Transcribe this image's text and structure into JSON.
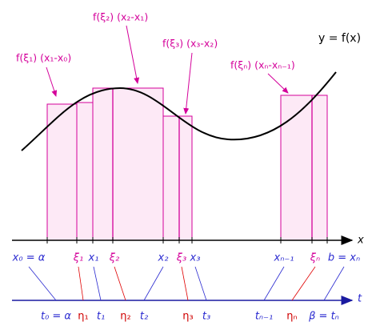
{
  "curve_label": "y = f(x)",
  "annotations": [
    "f(ξ₁) (x₁-x₀)",
    "f(ξ₂) (x₂-x₁)",
    "f(ξ₃) (x₃-x₂)",
    "f(ξₙ) (xₙ-xₙ₋₁)"
  ],
  "x_axis": {
    "label": "x",
    "points": [
      "x₀ = α",
      "ξ₁",
      "x₁",
      "ξ₂",
      "x₂",
      "ξ₃",
      "x₃",
      "xₙ₋₁",
      "ξₙ",
      "b = xₙ"
    ]
  },
  "t_axis": {
    "label": "t",
    "points": [
      "t₀ = α",
      "η₁",
      "t₁",
      "η₂",
      "t₂",
      "η₃",
      "t₃",
      "tₙ₋₁",
      "ηₙ",
      "β = tₙ"
    ]
  }
}
